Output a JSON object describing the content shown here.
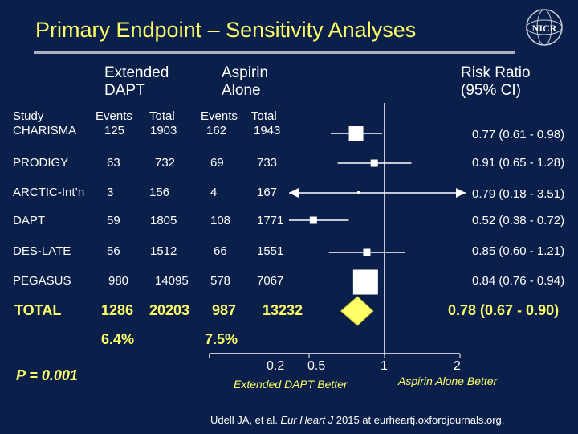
{
  "title": "Primary Endpoint – Sensitivity Analyses",
  "headers": {
    "extended": [
      "Extended",
      "DAPT"
    ],
    "aspirin": [
      "Aspirin",
      "Alone"
    ],
    "risk": [
      "Risk Ratio",
      "(95% CI)"
    ],
    "study": "Study",
    "events1": "Events",
    "total1": "Total",
    "events2": "Events",
    "total2": "Total"
  },
  "rows": [
    {
      "study": "CHARISMA",
      "e1": "125",
      "t1": "1903",
      "e2": "162",
      "t2": "1943",
      "ci": "0.77 (0.61 - 0.98)"
    },
    {
      "study": "PRODIGY",
      "e1": "63",
      "t1": "732",
      "e2": "69",
      "t2": "733",
      "ci": "0.91 (0.65 - 1.28)"
    },
    {
      "study": "ARCTIC-Int’n",
      "e1": "3",
      "t1": "156",
      "e2": "4",
      "t2": "167",
      "ci": "0.79 (0.18 - 3.51)"
    },
    {
      "study": "DAPT",
      "e1": "59",
      "t1": "1805",
      "e2": "108",
      "t2": "1771",
      "ci": "0.52 (0.38 - 0.72)"
    },
    {
      "study": "DES-LATE",
      "e1": "56",
      "t1": "1512",
      "e2": "66",
      "t2": "1551",
      "ci": "0.85 (0.60 - 1.21)"
    },
    {
      "study": "PEGASUS",
      "e1": "980",
      "t1": "14095",
      "e2": "578",
      "t2": "7067",
      "ci": "0.84 (0.76 - 0.94)"
    }
  ],
  "total": {
    "label": "TOTAL",
    "e1": "1286",
    "t1": "20203",
    "e2": "987",
    "t2": "13232",
    "ci": "0.78 (0.67 - 0.90)"
  },
  "percentages": {
    "p1": "6.4%",
    "p2": "7.5%"
  },
  "pvalue": "P = 0.001",
  "axis": {
    "ticks": [
      "0.2",
      "0.5",
      "1",
      "2"
    ],
    "left_label": "Extended DAPT Better",
    "right_label": "Aspirin Alone Better"
  },
  "citation": {
    "pre": "Udell JA, et al. ",
    "journal": "Eur Heart J",
    "post": " 2015 at eurheartj.oxfordjournals.org."
  },
  "logo_text": "NICR",
  "colors": {
    "background": "#0a1f4a",
    "title": "#ffff66",
    "diamond": "#ffff66",
    "marker": "#ffffff"
  },
  "chart_data": {
    "type": "forest",
    "scale": "log",
    "reference": 1,
    "xticks": [
      0.2,
      0.5,
      1,
      2
    ],
    "studies": [
      {
        "name": "CHARISMA",
        "rr": 0.77,
        "lo": 0.61,
        "hi": 0.98,
        "weight": "large"
      },
      {
        "name": "PRODIGY",
        "rr": 0.91,
        "lo": 0.65,
        "hi": 1.28,
        "weight": "small"
      },
      {
        "name": "ARCTIC-Int’n",
        "rr": 0.79,
        "lo": 0.18,
        "hi": 3.51,
        "weight": "tiny",
        "arrow_left": true,
        "arrow_right": true
      },
      {
        "name": "DAPT",
        "rr": 0.52,
        "lo": 0.38,
        "hi": 0.72,
        "weight": "small"
      },
      {
        "name": "DES-LATE",
        "rr": 0.85,
        "lo": 0.6,
        "hi": 1.21,
        "weight": "small"
      },
      {
        "name": "PEGASUS",
        "rr": 0.84,
        "lo": 0.76,
        "hi": 0.94,
        "weight": "largest"
      }
    ],
    "pooled": {
      "name": "TOTAL",
      "rr": 0.78,
      "lo": 0.67,
      "hi": 0.9
    }
  }
}
